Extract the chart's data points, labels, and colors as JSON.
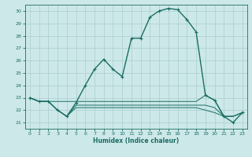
{
  "xlabel": "Humidex (Indice chaleur)",
  "ylabel": "",
  "xlim": [
    -0.5,
    23.5
  ],
  "ylim": [
    20.5,
    30.5
  ],
  "yticks": [
    21,
    22,
    23,
    24,
    25,
    26,
    27,
    28,
    29,
    30
  ],
  "xticks": [
    0,
    1,
    2,
    3,
    4,
    5,
    6,
    7,
    8,
    9,
    10,
    11,
    12,
    13,
    14,
    15,
    16,
    17,
    18,
    19,
    20,
    21,
    22,
    23
  ],
  "bg_color": "#cde8e8",
  "grid_color": "#aacece",
  "line_color": "#1a6e64",
  "series_main": [
    23.0,
    22.7,
    22.7,
    22.0,
    21.5,
    22.6,
    24.0,
    25.3,
    26.1,
    25.3,
    24.7,
    27.8,
    27.8,
    29.5,
    30.0,
    30.2,
    30.1,
    29.3,
    28.3,
    23.2,
    22.8,
    21.5,
    21.0,
    21.8
  ],
  "series_flat": [
    [
      23.0,
      22.7,
      22.7,
      22.7,
      22.7,
      22.7,
      22.7,
      22.7,
      22.7,
      22.7,
      22.7,
      22.7,
      22.7,
      22.7,
      22.7,
      22.7,
      22.7,
      22.7,
      22.7,
      23.2,
      22.8,
      21.5,
      21.5,
      21.8
    ],
    [
      23.0,
      22.7,
      22.7,
      22.0,
      21.5,
      22.4,
      22.4,
      22.4,
      22.4,
      22.4,
      22.4,
      22.4,
      22.4,
      22.4,
      22.4,
      22.4,
      22.4,
      22.4,
      22.4,
      22.4,
      22.2,
      21.5,
      21.5,
      21.8
    ],
    [
      23.0,
      22.7,
      22.7,
      22.0,
      21.5,
      22.2,
      22.2,
      22.2,
      22.2,
      22.2,
      22.2,
      22.2,
      22.2,
      22.2,
      22.2,
      22.2,
      22.2,
      22.2,
      22.2,
      22.0,
      21.8,
      21.5,
      21.5,
      21.8
    ]
  ]
}
